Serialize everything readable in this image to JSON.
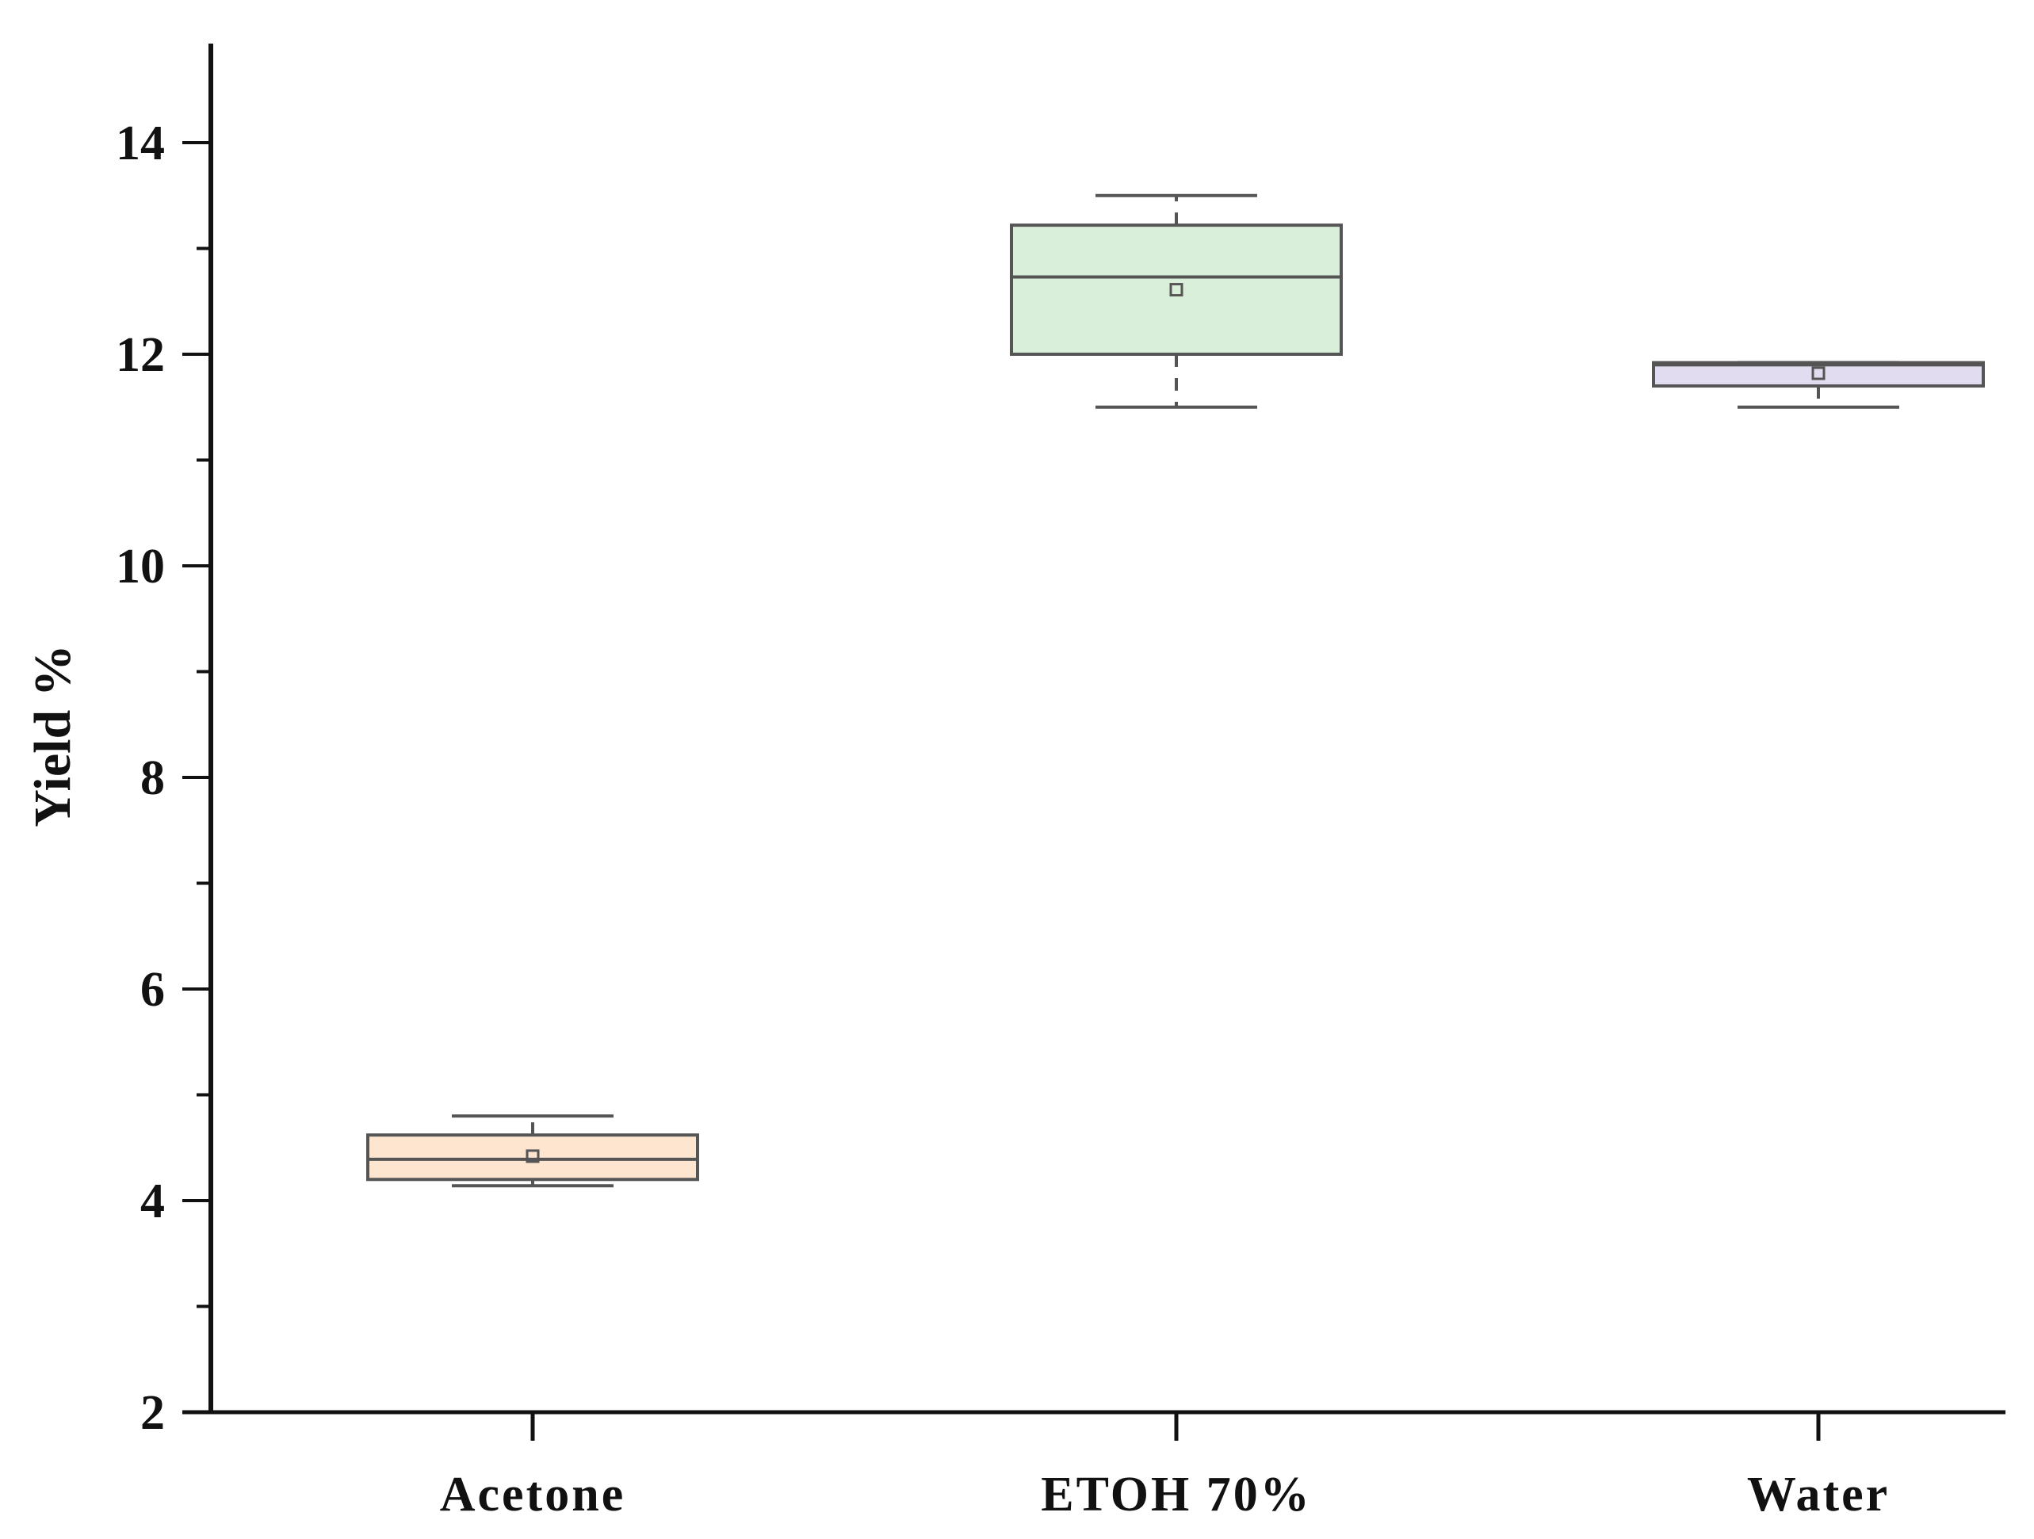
{
  "chart_data": {
    "type": "box",
    "title": "",
    "xlabel": "",
    "ylabel": "Yield %",
    "ylim": [
      2,
      14.9
    ],
    "yticks": [
      2,
      4,
      6,
      8,
      10,
      12,
      14
    ],
    "yticks_minor": [
      3,
      5,
      7,
      9,
      11,
      13
    ],
    "grid": false,
    "legend": "none",
    "categories": [
      "Acetone",
      "ETOH 70%",
      "Water"
    ],
    "boxes": [
      {
        "category": "Acetone",
        "whisker_low": 4.14,
        "q1": 4.2,
        "median": 4.39,
        "q3": 4.62,
        "whisker_high": 4.8,
        "mean": 4.42,
        "color": "#fde5cf"
      },
      {
        "category": "ETOH 70%",
        "whisker_low": 11.5,
        "q1": 12.0,
        "median": 12.73,
        "q3": 13.22,
        "whisker_high": 13.5,
        "mean": 12.61,
        "color": "#d9efd9"
      },
      {
        "category": "Water",
        "whisker_low": 11.5,
        "q1": 11.7,
        "median": 11.9,
        "q3": 11.92,
        "whisker_high": 11.92,
        "mean": 11.82,
        "color": "#e2dcf0"
      }
    ],
    "colors": {
      "axis": "#111111",
      "box_edge": "#555555"
    }
  }
}
